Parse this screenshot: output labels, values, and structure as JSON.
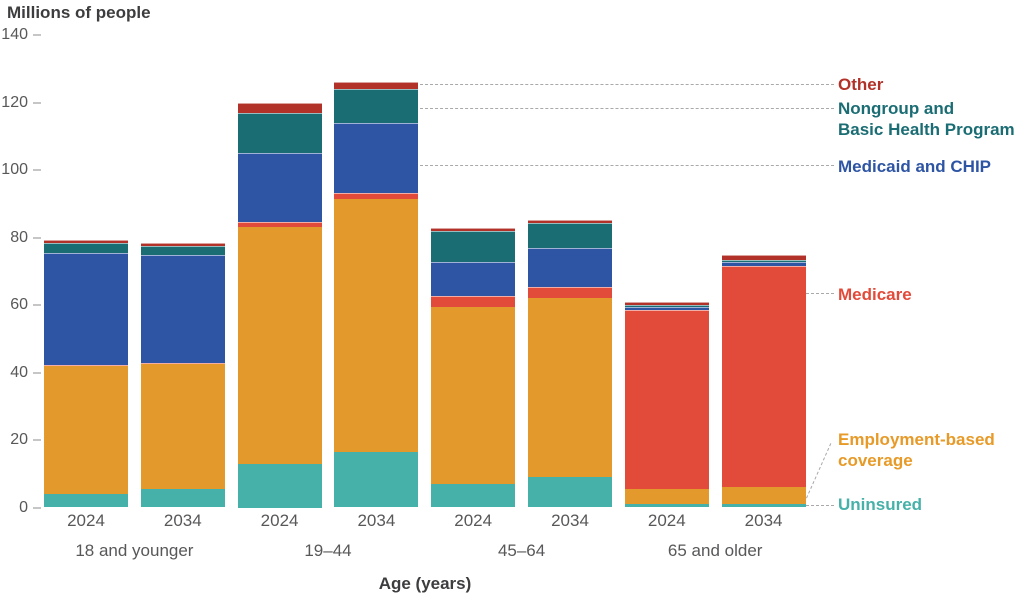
{
  "title": "Millions of people",
  "x_axis_title": "Age (years)",
  "colors": {
    "uninsured": "#46b1a9",
    "employment": "#e3992b",
    "medicare": "#e24b3a",
    "medicaid": "#2e55a4",
    "nongroup": "#1b6d74",
    "other": "#b23229",
    "axis_text": "#58585a",
    "leader_line": "#a9a9a9"
  },
  "legend": {
    "other": "Other",
    "nongroup": "Nongroup and\nBasic Health Program",
    "medicaid": "Medicaid and CHIP",
    "medicare": "Medicare",
    "employment": "Employment-based\ncoverage",
    "uninsured": "Uninsured"
  },
  "chart_data": {
    "type": "bar",
    "subtype": "stacked",
    "title": "Millions of people",
    "xlabel": "Age (years)",
    "ylabel": "Millions of people",
    "ylim": [
      0,
      140
    ],
    "y_ticks": [
      0,
      20,
      40,
      60,
      80,
      100,
      120,
      140
    ],
    "grid": false,
    "legend_position": "right",
    "segments_order_bottom_to_top": [
      "uninsured",
      "employment",
      "medicare",
      "medicaid",
      "nongroup",
      "other"
    ],
    "series_labels": {
      "uninsured": "Uninsured",
      "employment": "Employment-based coverage",
      "medicare": "Medicare",
      "medicaid": "Medicaid and CHIP",
      "nongroup": "Nongroup and Basic Health Program",
      "other": "Other"
    },
    "groups": [
      "18 and younger",
      "19–44",
      "45–64",
      "65 and older"
    ],
    "years": [
      "2024",
      "2034"
    ],
    "bars": [
      {
        "group": "18 and younger",
        "year": "2024",
        "values": {
          "uninsured": 4,
          "employment": 38,
          "medicare": 0.3,
          "medicaid": 33,
          "nongroup": 3,
          "other": 1
        },
        "total": 79.3
      },
      {
        "group": "18 and younger",
        "year": "2034",
        "values": {
          "uninsured": 5.5,
          "employment": 37,
          "medicare": 0.3,
          "medicaid": 32,
          "nongroup": 2.7,
          "other": 0.8
        },
        "total": 78.3
      },
      {
        "group": "19–44",
        "year": "2024",
        "values": {
          "uninsured": 13,
          "employment": 70,
          "medicare": 1.5,
          "medicaid": 20.5,
          "nongroup": 12,
          "other": 3
        },
        "total": 120
      },
      {
        "group": "19–44",
        "year": "2034",
        "values": {
          "uninsured": 16.5,
          "employment": 75,
          "medicare": 1.8,
          "medicaid": 20.7,
          "nongroup": 10,
          "other": 2.2
        },
        "total": 126.2
      },
      {
        "group": "45–64",
        "year": "2024",
        "values": {
          "uninsured": 7,
          "employment": 52.5,
          "medicare": 3.3,
          "medicaid": 10,
          "nongroup": 9,
          "other": 1
        },
        "total": 82.8
      },
      {
        "group": "45–64",
        "year": "2034",
        "values": {
          "uninsured": 9,
          "employment": 53,
          "medicare": 3.4,
          "medicaid": 11.5,
          "nongroup": 7.5,
          "other": 0.8
        },
        "total": 85.2
      },
      {
        "group": "65 and older",
        "year": "2024",
        "values": {
          "uninsured": 1,
          "employment": 4.5,
          "medicare": 53,
          "medicaid": 1,
          "nongroup": 0.4,
          "other": 1
        },
        "total": 60.9
      },
      {
        "group": "65 and older",
        "year": "2034",
        "values": {
          "uninsured": 1.1,
          "employment": 4.9,
          "medicare": 65.5,
          "medicaid": 1.1,
          "nongroup": 0.7,
          "other": 1.5
        },
        "total": 74.8
      }
    ]
  }
}
